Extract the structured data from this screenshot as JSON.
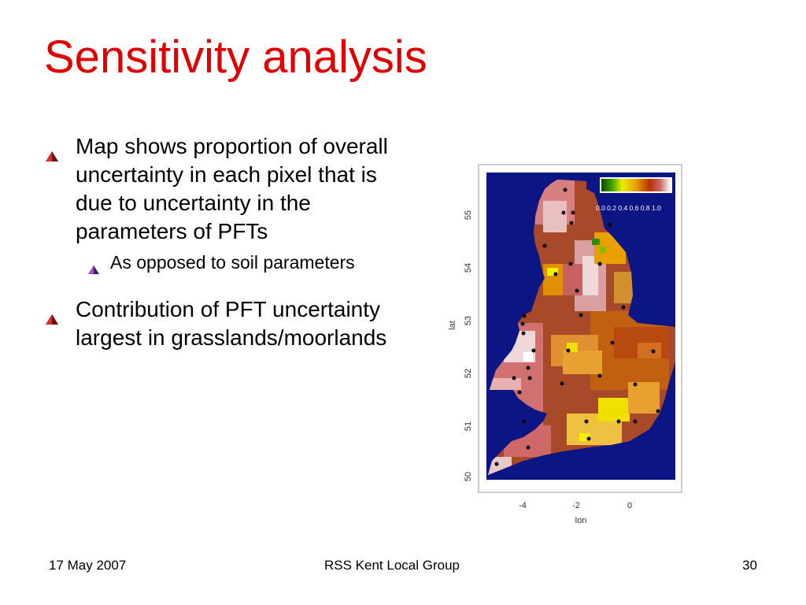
{
  "slide": {
    "title": "Sensitivity analysis",
    "bullets": [
      {
        "text": "Map shows proportion of overall uncertainty in each pixel that is due to uncertainty in the parameters of PFTs",
        "sub": [
          {
            "text": "As opposed to soil parameters"
          }
        ]
      },
      {
        "text": "Contribution of PFT uncertainty largest in grasslands/moorlands"
      }
    ]
  },
  "figure": {
    "colorbar_labels": "0.0 0.2 0.4 0.6 0.8 1.0",
    "x_label": "lon",
    "y_label": "lat",
    "x_ticks": [
      "-4",
      "-2",
      "0"
    ],
    "y_ticks": [
      "50",
      "51",
      "52",
      "53",
      "54",
      "55"
    ],
    "colors": {
      "sea": "#0c1584",
      "high": "#f4f0f0",
      "mid": "#c85a5a",
      "low": "#8a1a00",
      "orange": "#e8a000",
      "yellow": "#f0ee00",
      "green": "#1a8a00"
    }
  },
  "footer": {
    "date": "17 May 2007",
    "group": "RSS Kent Local Group",
    "page": "30"
  }
}
